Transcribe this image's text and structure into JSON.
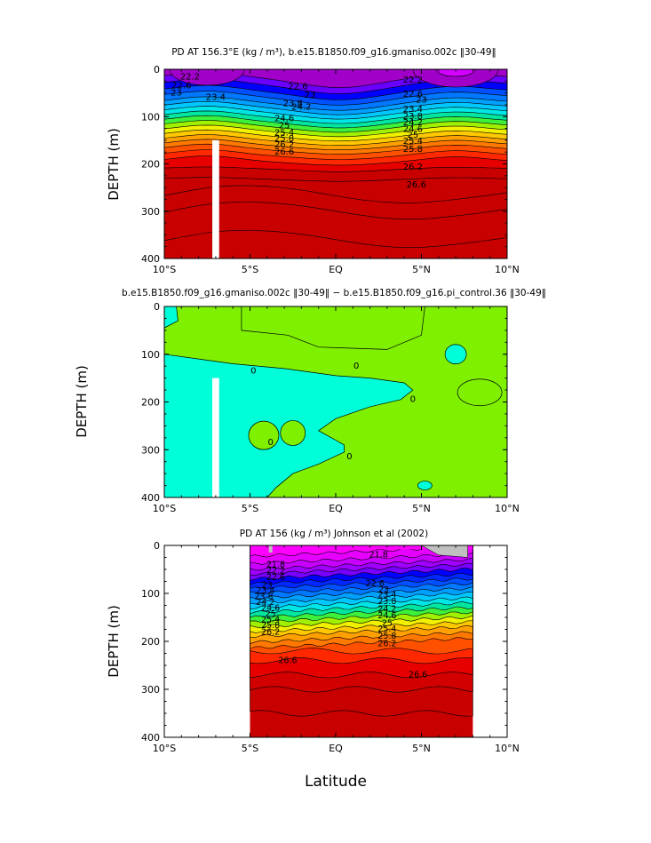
{
  "chart_data": [
    {
      "type": "heatmap",
      "title": "PD AT 156.3°E (kg / m³), b.e15.B1850.f09_g16.gmaniso.002c ‖30-49‖",
      "xlabel": "",
      "ylabel": "DEPTH (m)",
      "xlim": [
        -10,
        10
      ],
      "ylim": [
        400,
        0
      ],
      "x_ticks": [
        "10°S",
        "5°S",
        "EQ",
        "5°N",
        "10°N"
      ],
      "y_ticks": [
        "0",
        "100",
        "200",
        "300",
        "400"
      ],
      "contour_labels": [
        "22.2",
        "22.6",
        "23",
        "23.4",
        "23.8",
        "24.2",
        "24.6",
        "25",
        "25.4",
        "25.8",
        "26.2",
        "26.6",
        "22.6",
        "23",
        "22.2",
        "22.6",
        "23",
        "23.4",
        "23.8",
        "24.2",
        "24.6",
        "25",
        "25.4",
        "25.8",
        "26.2",
        "26.6"
      ],
      "contour_levels": [
        21.8,
        22.2,
        22.6,
        23.0,
        23.4,
        23.8,
        24.2,
        24.6,
        25.0,
        25.4,
        25.8,
        26.2,
        26.6
      ],
      "masked_column_lat": [
        -7.2,
        -6.8
      ],
      "masked_column_depth": [
        150,
        400
      ]
    },
    {
      "type": "heatmap",
      "title": "b.e15.B1850.f09_g16.gmaniso.002c ‖30-49‖ − b.e15.B1850.f09_g16.pi_control.36 ‖30-49‖",
      "xlabel": "",
      "ylabel": "DEPTH (m)",
      "xlim": [
        -10,
        10
      ],
      "ylim": [
        400,
        0
      ],
      "x_ticks": [
        "10°S",
        "5°S",
        "EQ",
        "5°N",
        "10°N"
      ],
      "y_ticks": [
        "0",
        "100",
        "200",
        "300",
        "400"
      ],
      "contour_labels": [
        "0",
        "0",
        "0",
        "0",
        "0"
      ],
      "regions": [
        {
          "value": "positive",
          "color": "#7ef000"
        },
        {
          "value": "negative",
          "color": "#00ffd8"
        }
      ]
    },
    {
      "type": "heatmap",
      "title": "PD AT 156 (kg / m³) Johnson et al (2002)",
      "xlabel": "Latitude",
      "ylabel": "DEPTH (m)",
      "xlim": [
        -10,
        10
      ],
      "ylim": [
        400,
        0
      ],
      "x_ticks": [
        "10°S",
        "5°S",
        "EQ",
        "5°N",
        "10°N"
      ],
      "y_ticks": [
        "0",
        "100",
        "200",
        "300",
        "400"
      ],
      "data_extent_lat": [
        -5,
        8
      ],
      "contour_labels": [
        "21.8",
        "22.2",
        "22.6",
        "23",
        "23.4",
        "23.8",
        "24.2",
        "24.6",
        "25",
        "25.4",
        "25.8",
        "26.2",
        "26.6",
        "22.6",
        "23",
        "23.4",
        "23.8",
        "24.2",
        "24.6",
        "25",
        "25.4",
        "25.8",
        "26.2",
        "26.6",
        "21.8"
      ]
    }
  ],
  "colors": {
    "bands": [
      "#a000c8",
      "#6a00ff",
      "#0000ff",
      "#0050ff",
      "#0078ff",
      "#00a0ff",
      "#00c8ff",
      "#00e6e6",
      "#00e6a0",
      "#3cf03c",
      "#a0f000",
      "#f0f000",
      "#ffc800",
      "#ffa000",
      "#ff7800",
      "#ff5000",
      "#ff2800",
      "#e60000",
      "#c80000"
    ],
    "diff_pos": "#7ef000",
    "diff_neg": "#00ffd8",
    "mask": "#ffffff",
    "obs_top": "#ff00ff",
    "missing": "#c0c0c0"
  }
}
